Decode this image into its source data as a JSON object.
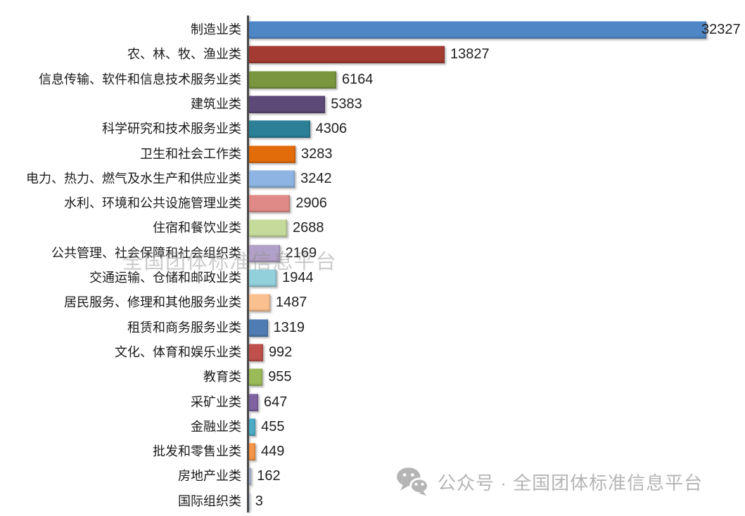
{
  "chart_data": {
    "type": "bar",
    "orientation": "horizontal",
    "title": "",
    "xlabel": "",
    "ylabel": "",
    "grid": false,
    "legend": false,
    "xlim": [
      0,
      32327
    ],
    "value_labels_shown": true,
    "axis_color": "#4a4a4a",
    "label_color": "#1a1a1a",
    "categories": [
      "制造业类",
      "农、林、牧、渔业类",
      "信息传输、软件和信息技术服务业类",
      "建筑业类",
      "科学研究和技术服务业类",
      "卫生和社会工作类",
      "电力、热力、燃气及水生产和供应业类",
      "水利、环境和公共设施管理业类",
      "住宿和餐饮业类",
      "公共管理、社会保障和社会组织类",
      "交通运输、仓储和邮政业类",
      "居民服务、修理和其他服务业类",
      "租赁和商务服务业类",
      "文化、体育和娱乐业类",
      "教育类",
      "采矿业类",
      "金融业类",
      "批发和零售业类",
      "房地产业类",
      "国际组织类"
    ],
    "values": [
      32327,
      13827,
      6164,
      5383,
      4306,
      3283,
      3242,
      2906,
      2688,
      2169,
      1944,
      1487,
      1319,
      992,
      955,
      647,
      455,
      449,
      162,
      3
    ],
    "bar_colors": [
      "#4E86C6",
      "#A33B32",
      "#7A963F",
      "#5C4977",
      "#2B8098",
      "#E36C0A",
      "#8DB4E2",
      "#E08A88",
      "#C6DA9C",
      "#B1A0C7",
      "#92D0DC",
      "#FAC090",
      "#4F7DB3",
      "#C0504D",
      "#9BBB59",
      "#8064A2",
      "#4BACC6",
      "#F79646",
      "#AFBDDB",
      "#C6D9F1"
    ]
  },
  "watermarks": {
    "center_text": "全国团体标准信息平台",
    "footer_text": "公众号 · 全国团体标准信息平台",
    "footer_icon": "wechat-icon",
    "footer_color": "#b5b5b5"
  }
}
